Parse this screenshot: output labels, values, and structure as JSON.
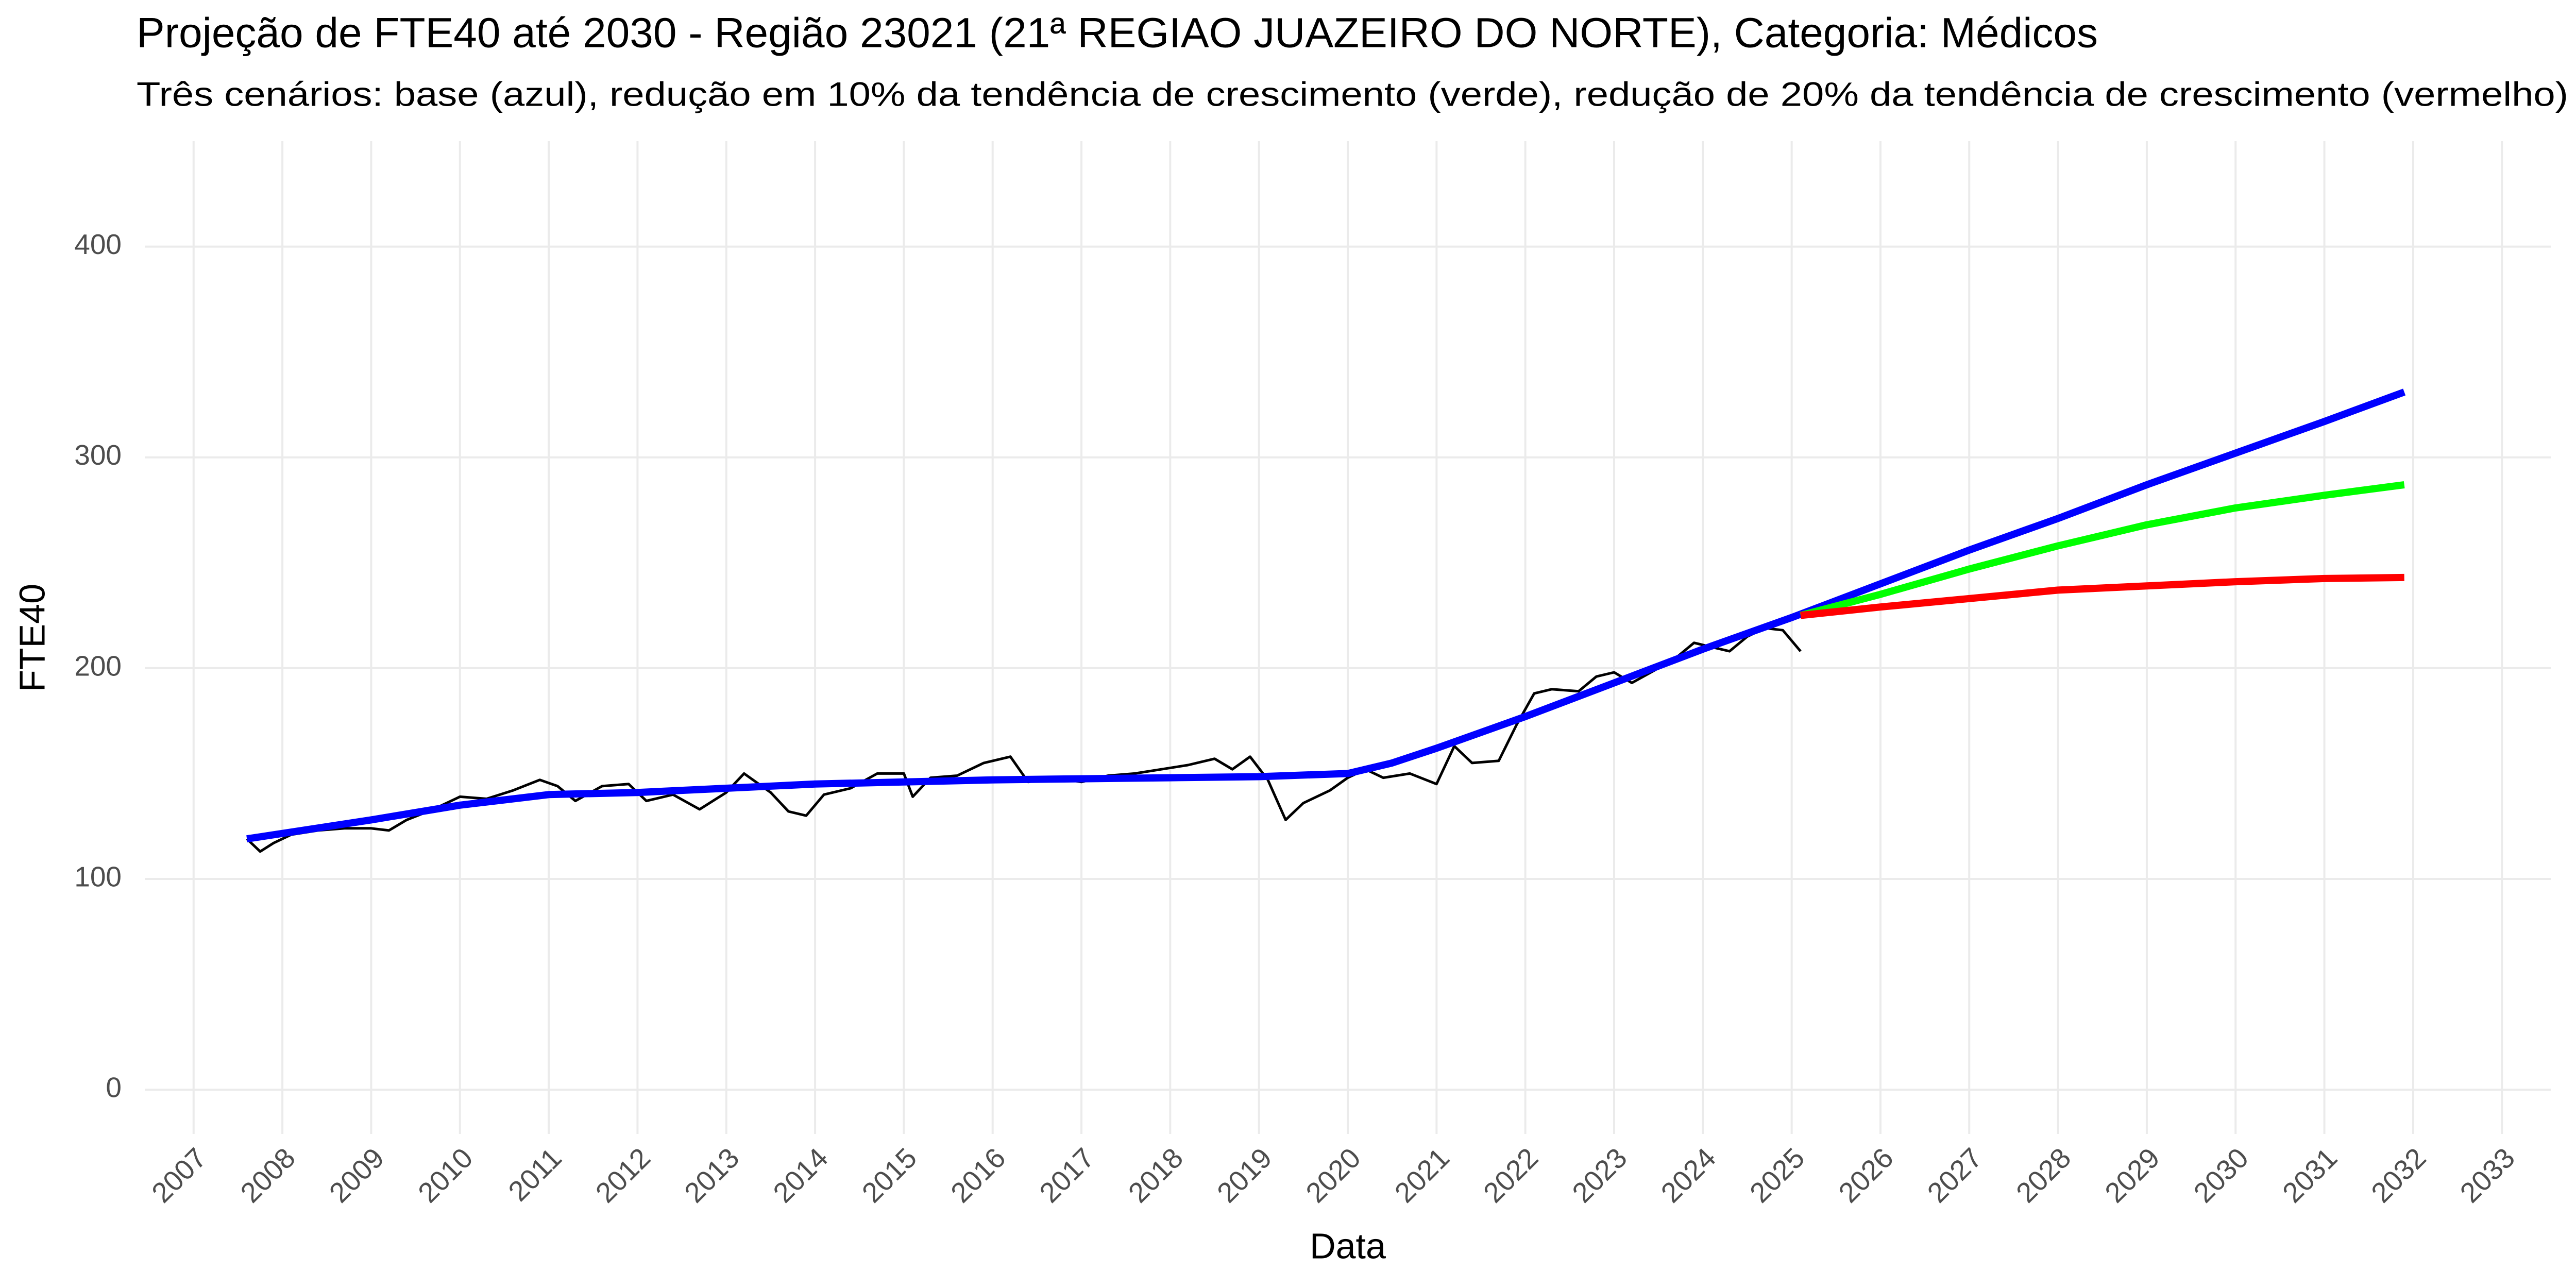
{
  "chart_data": {
    "type": "line",
    "title": "Projeção de FTE40 até 2030 - Região 23021 (21ª REGIAO JUAZEIRO DO NORTE), Categoria: Médicos",
    "subtitle": "Três cenários: base (azul), redução em 10% da tendência de crescimento (verde), redução de 20% da tendência de crescimento (vermelho)",
    "x_label": "Data",
    "y_label": "FTE40",
    "xlim": [
      2006.45,
      2033.55
    ],
    "ylim": [
      -21,
      450
    ],
    "xticks": [
      2007,
      2008,
      2009,
      2010,
      2011,
      2012,
      2013,
      2014,
      2015,
      2016,
      2017,
      2018,
      2019,
      2020,
      2021,
      2022,
      2023,
      2024,
      2025,
      2026,
      2027,
      2028,
      2029,
      2030,
      2031,
      2032,
      2033
    ],
    "yticks": [
      0,
      100,
      200,
      300,
      400
    ],
    "grid": true,
    "series": [
      {
        "color": "#000000",
        "width": 5,
        "x": [
          2007.6,
          2007.75,
          2007.9,
          2008.1,
          2008.4,
          2008.7,
          2009.0,
          2009.2,
          2009.4,
          2009.7,
          2010.0,
          2010.3,
          2010.6,
          2010.9,
          2011.1,
          2011.3,
          2011.6,
          2011.9,
          2012.1,
          2012.4,
          2012.7,
          2013.0,
          2013.2,
          2013.5,
          2013.7,
          2013.9,
          2014.1,
          2014.4,
          2014.7,
          2015.0,
          2015.1,
          2015.3,
          2015.6,
          2015.9,
          2016.2,
          2016.4,
          2016.7,
          2017.0,
          2017.3,
          2017.6,
          2017.9,
          2018.2,
          2018.5,
          2018.7,
          2018.9,
          2019.1,
          2019.3,
          2019.5,
          2019.8,
          2020.0,
          2020.2,
          2020.4,
          2020.7,
          2021.0,
          2021.2,
          2021.4,
          2021.7,
          2021.9,
          2022.1,
          2022.3,
          2022.6,
          2022.8,
          2023.0,
          2023.2,
          2023.5,
          2023.7,
          2023.9,
          2024.1,
          2024.3,
          2024.5,
          2024.7,
          2024.9,
          2025.1
        ],
        "values": [
          119,
          113,
          117,
          121,
          123,
          124,
          124,
          123,
          128,
          133,
          139,
          138,
          142,
          147,
          144,
          137,
          144,
          145,
          137,
          140,
          133,
          141,
          150,
          141,
          132,
          130,
          140,
          143,
          150,
          150,
          139,
          148,
          149,
          155,
          158,
          146,
          148,
          146,
          149,
          150,
          152,
          154,
          157,
          152,
          158,
          147,
          128,
          136,
          142,
          148,
          152,
          148,
          150,
          145,
          163,
          155,
          156,
          173,
          188,
          190,
          189,
          196,
          198,
          193,
          200,
          205,
          212,
          210,
          208,
          215,
          219,
          218,
          208
        ]
      },
      {
        "color": "#0000ff",
        "width": 14,
        "x": [
          2007.6,
          2009,
          2010,
          2011,
          2012,
          2013,
          2014,
          2015,
          2016,
          2017,
          2018,
          2019,
          2020,
          2020.5,
          2021,
          2022,
          2023,
          2024,
          2025,
          2026,
          2027,
          2028,
          2029,
          2030,
          2031,
          2031.9
        ],
        "values": [
          119,
          128,
          135,
          140,
          141,
          143,
          145,
          146,
          147,
          147.5,
          148,
          148.5,
          150,
          155,
          162,
          177,
          193,
          209,
          224,
          240,
          256,
          271,
          287,
          302,
          317,
          331
        ]
      },
      {
        "color": "#00ff00",
        "width": 14,
        "x": [
          2025.1,
          2026,
          2027,
          2028,
          2029,
          2030,
          2031,
          2031.9
        ],
        "values": [
          225,
          235,
          247,
          258,
          268,
          276,
          282,
          287
        ]
      },
      {
        "color": "#ff0000",
        "width": 14,
        "x": [
          2025.1,
          2026,
          2027,
          2028,
          2029,
          2030,
          2031,
          2031.9
        ],
        "values": [
          225,
          229,
          233,
          237,
          239,
          241,
          242.5,
          243
        ]
      }
    ]
  }
}
